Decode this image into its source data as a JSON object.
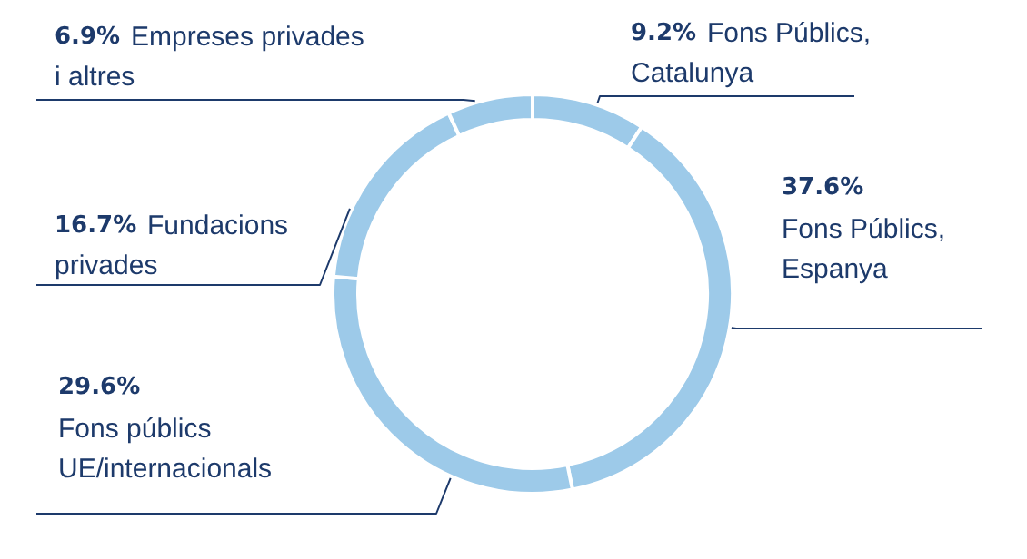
{
  "chart_data": {
    "type": "donut",
    "categories": [
      "Fons Públics, Catalunya",
      "Fons Públics, Espanya",
      "Fons públics UE/internacionals",
      "Fundacions privades",
      "Empreses privades i altres"
    ],
    "values": [
      9.2,
      37.6,
      29.6,
      16.7,
      6.9
    ],
    "value_labels": [
      "9.2%",
      "37.6%",
      "29.6%",
      "16.7%",
      "6.9%"
    ],
    "colors": [
      "#9dcae9",
      "#9dcae9",
      "#9dcae9",
      "#9dcae9",
      "#9dcae9"
    ]
  }
}
